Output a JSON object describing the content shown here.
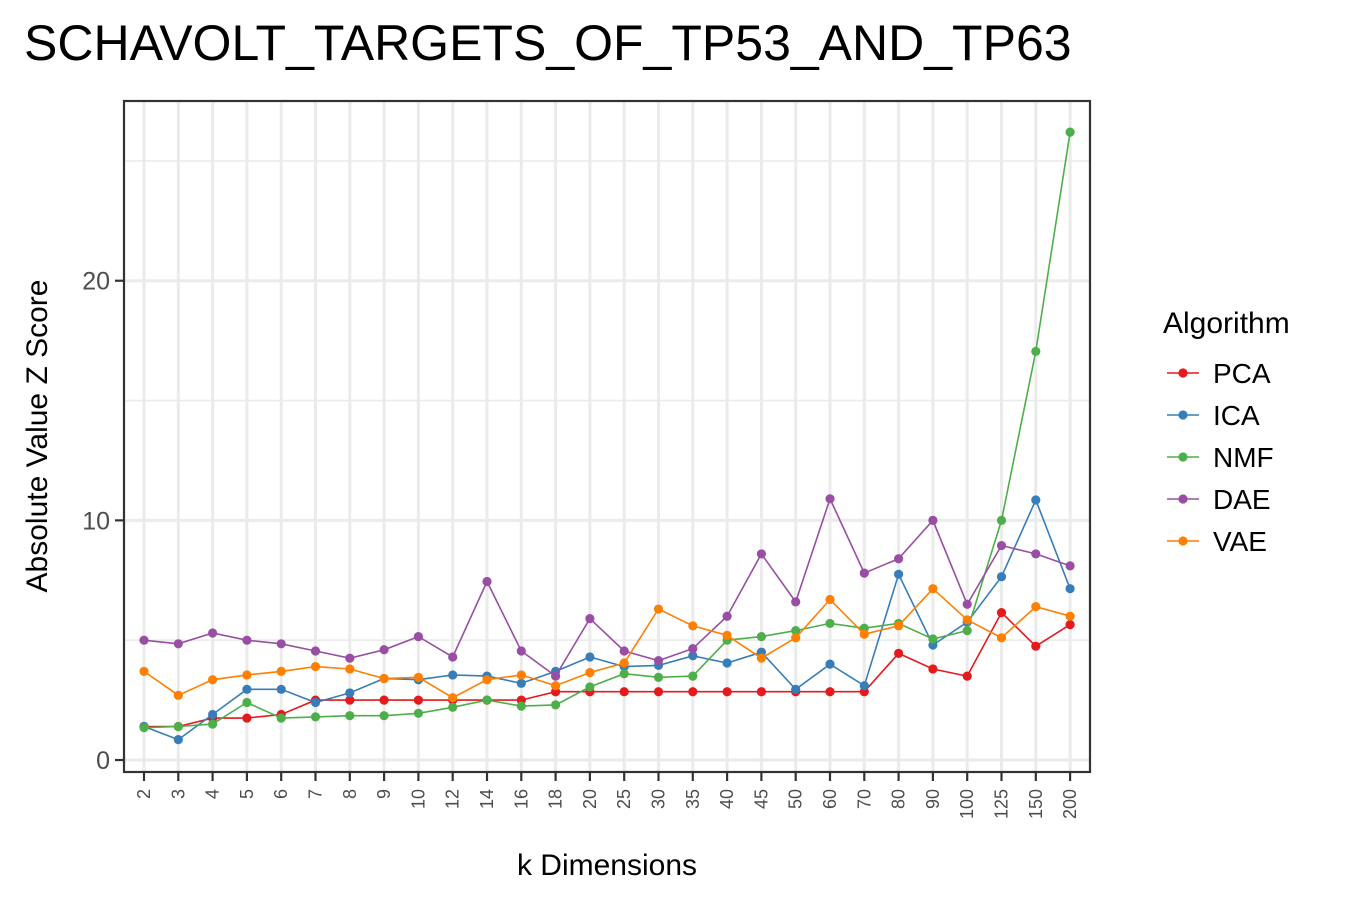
{
  "chart_data": {
    "type": "line",
    "title": "SCHAVOLT_TARGETS_OF_TP53_AND_TP63",
    "xlabel": "k Dimensions",
    "ylabel": "Absolute Value Z Score",
    "x": [
      "2",
      "3",
      "4",
      "5",
      "6",
      "7",
      "8",
      "9",
      "10",
      "12",
      "14",
      "16",
      "18",
      "20",
      "25",
      "30",
      "35",
      "40",
      "45",
      "50",
      "60",
      "70",
      "80",
      "90",
      "100",
      "125",
      "150",
      "200"
    ],
    "ylim": [
      -0.5,
      27.5
    ],
    "yticks": [
      0,
      10,
      20
    ],
    "grid": true,
    "legend_title": "Algorithm",
    "legend_position": "right",
    "series": [
      {
        "name": "PCA",
        "color": "#e41a1c",
        "values": [
          1.4,
          1.4,
          1.75,
          1.75,
          1.9,
          2.5,
          2.5,
          2.5,
          2.5,
          2.5,
          2.5,
          2.5,
          2.85,
          2.85,
          2.85,
          2.85,
          2.85,
          2.85,
          2.85,
          2.85,
          2.85,
          2.85,
          4.45,
          3.8,
          3.5,
          6.15,
          4.75,
          5.65
        ]
      },
      {
        "name": "ICA",
        "color": "#377eb8",
        "values": [
          1.4,
          0.85,
          1.9,
          2.95,
          2.95,
          2.4,
          2.8,
          3.4,
          3.35,
          3.55,
          3.5,
          3.2,
          3.7,
          4.3,
          3.9,
          3.95,
          4.35,
          4.05,
          4.5,
          2.95,
          4.0,
          3.1,
          7.75,
          4.8,
          5.75,
          7.65,
          10.85,
          7.15
        ]
      },
      {
        "name": "NMF",
        "color": "#4daf4a",
        "values": [
          1.35,
          1.4,
          1.5,
          2.4,
          1.75,
          1.8,
          1.85,
          1.85,
          1.95,
          2.2,
          2.5,
          2.25,
          2.3,
          3.05,
          3.6,
          3.45,
          3.5,
          5.0,
          5.15,
          5.4,
          5.7,
          5.5,
          5.7,
          5.05,
          5.4,
          10.0,
          17.05,
          26.2
        ]
      },
      {
        "name": "DAE",
        "color": "#984ea3",
        "values": [
          5.0,
          4.85,
          5.3,
          5.0,
          4.85,
          4.55,
          4.25,
          4.6,
          5.15,
          4.3,
          7.45,
          4.55,
          3.5,
          5.9,
          4.55,
          4.15,
          4.65,
          6.0,
          8.6,
          6.6,
          10.9,
          7.8,
          8.4,
          10.0,
          6.5,
          8.95,
          8.6,
          8.1
        ]
      },
      {
        "name": "VAE",
        "color": "#ff7f00",
        "values": [
          3.7,
          2.7,
          3.35,
          3.55,
          3.7,
          3.9,
          3.8,
          3.4,
          3.45,
          2.6,
          3.35,
          3.55,
          3.1,
          3.65,
          4.05,
          6.3,
          5.6,
          5.2,
          4.25,
          5.1,
          6.7,
          5.25,
          5.6,
          7.15,
          5.85,
          5.1,
          6.4,
          6.0
        ]
      }
    ]
  }
}
